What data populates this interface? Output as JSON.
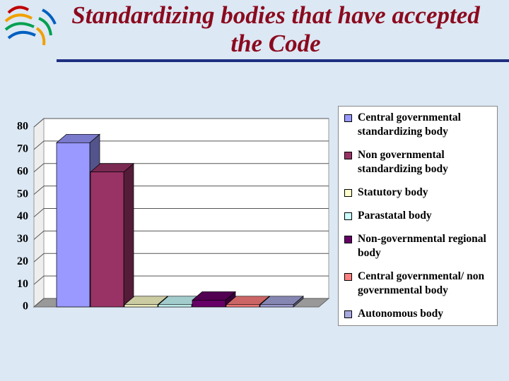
{
  "chart_data": {
    "type": "bar3d",
    "title": "Standardizing bodies that have accepted the Code",
    "series": [
      {
        "name": "Central governmental standardizing body",
        "color": "#9999ff",
        "values": [
          73
        ]
      },
      {
        "name": "Non governmental standardizing body",
        "color": "#993366",
        "values": [
          60
        ]
      },
      {
        "name": "Statutory body",
        "color": "#ffffcc",
        "values": [
          1
        ]
      },
      {
        "name": "Parastatal body",
        "color": "#ccffff",
        "values": [
          1
        ]
      },
      {
        "name": "Non-governmental regional body",
        "color": "#660066",
        "values": [
          3
        ]
      },
      {
        "name": "Central governmental/ non governmental body",
        "color": "#ff8080",
        "values": [
          1
        ]
      },
      {
        "name": "Autonomous body",
        "color": "#a8a8e0",
        "values": [
          1
        ]
      }
    ],
    "ylim": [
      0,
      80
    ],
    "yticks": [
      0,
      10,
      20,
      30,
      40,
      50,
      60,
      70,
      80
    ],
    "grid": true,
    "legend": "right"
  }
}
